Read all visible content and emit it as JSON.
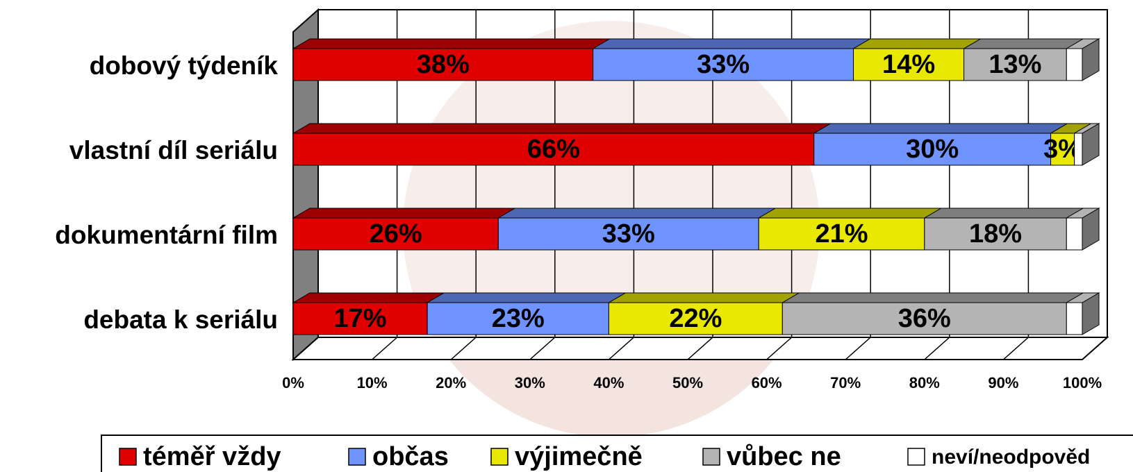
{
  "chart_data": {
    "type": "stacked-bar-horizontal",
    "categories": [
      "dobový týdeník",
      "vlastní díl seriálu",
      "dokumentární film",
      "debata k seriálu"
    ],
    "series": [
      {
        "name": "téměř vždy",
        "color": "#e00000",
        "values": [
          38,
          66,
          26,
          17
        ],
        "value_labels": [
          "38%",
          "66%",
          "26%",
          "17%"
        ]
      },
      {
        "name": "občas",
        "color": "#6f93ff",
        "values": [
          33,
          30,
          33,
          23
        ],
        "value_labels": [
          "33%",
          "30%",
          "33%",
          "23%"
        ]
      },
      {
        "name": "výjimečně",
        "color": "#e8e800",
        "values": [
          14,
          3,
          21,
          22
        ],
        "value_labels": [
          "14%",
          "3%",
          "21%",
          "22%"
        ]
      },
      {
        "name": "vůbec ne",
        "color": "#b4b4b4",
        "values": [
          13,
          0,
          18,
          36
        ],
        "value_labels": [
          "13%",
          null,
          "18%",
          "36%"
        ]
      },
      {
        "name": "neví/neodpověd",
        "color": "#ffffff",
        "values": [
          2,
          1,
          2,
          2
        ]
      }
    ],
    "xlim": [
      0,
      100
    ],
    "xticks": [
      {
        "value": 0,
        "label": "0%"
      },
      {
        "value": 10,
        "label": "10%"
      },
      {
        "value": 20,
        "label": "20%"
      },
      {
        "value": 30,
        "label": "30%"
      },
      {
        "value": 40,
        "label": "40%"
      },
      {
        "value": 50,
        "label": "50%"
      },
      {
        "value": 60,
        "label": "60%"
      },
      {
        "value": 70,
        "label": "70%"
      },
      {
        "value": 80,
        "label": "80%"
      },
      {
        "value": 90,
        "label": "90%"
      },
      {
        "value": 100,
        "label": "100%"
      }
    ],
    "grid": true
  }
}
